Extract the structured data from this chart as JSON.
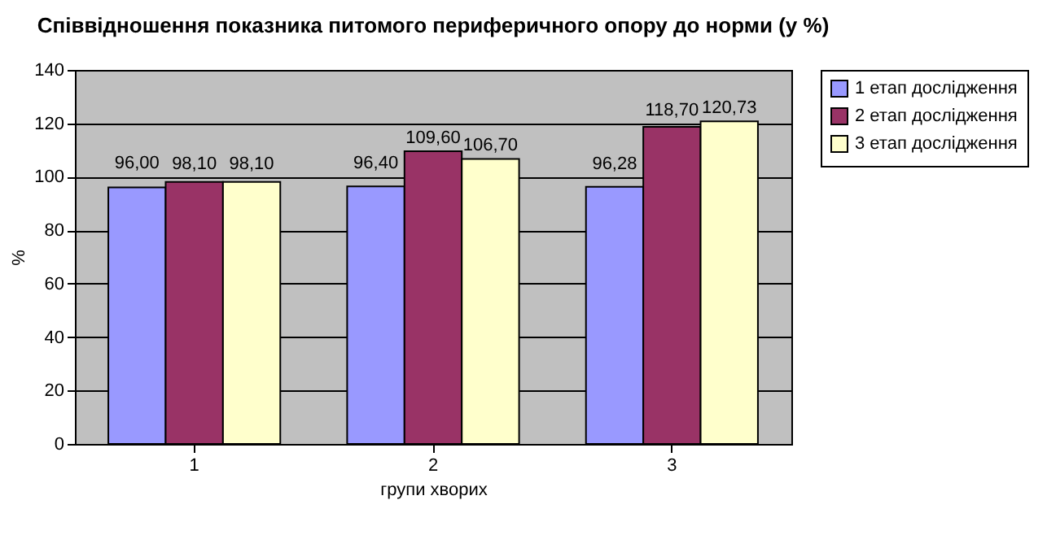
{
  "chart_data": {
    "type": "bar",
    "title": "Співвідношення показника питомого периферичного опору до норми (у %)",
    "categories": [
      "1",
      "2",
      "3"
    ],
    "xlabel": "групи хворих",
    "ylabel": "%",
    "series": [
      {
        "name": "1 етап дослідження",
        "color": "#9999ff",
        "values": [
          96.0,
          96.4,
          96.28
        ],
        "value_labels": [
          "96,00",
          "96,40",
          "96,28"
        ]
      },
      {
        "name": "2 етап дослідження",
        "color": "#993366",
        "values": [
          98.1,
          109.6,
          118.7
        ],
        "value_labels": [
          "98,10",
          "109,60",
          "118,70"
        ]
      },
      {
        "name": "3 етап дослідження",
        "color": "#ffffcc",
        "values": [
          98.1,
          106.7,
          120.73
        ],
        "value_labels": [
          "98,10",
          "106,70",
          "120,73"
        ]
      }
    ],
    "ylim": [
      0,
      140
    ],
    "yticks": [
      0,
      20,
      40,
      60,
      80,
      100,
      120,
      140
    ],
    "grid": "y",
    "legend": "right"
  }
}
